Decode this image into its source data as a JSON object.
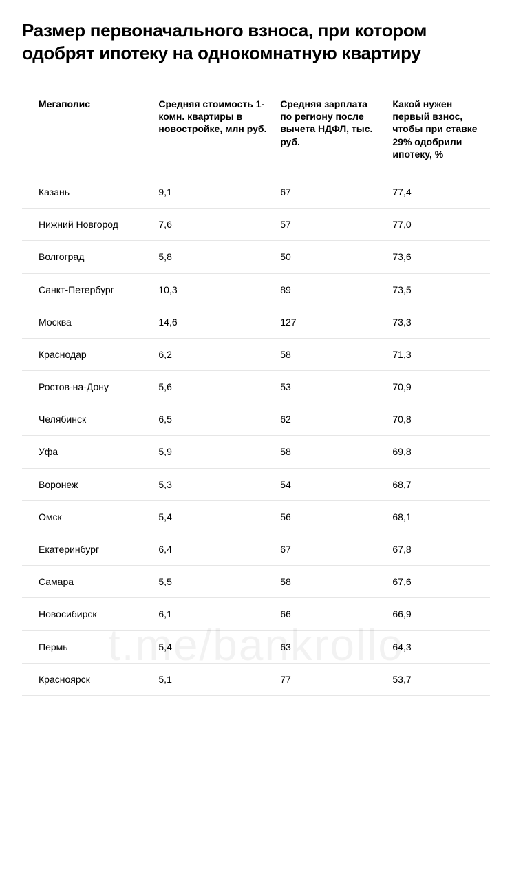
{
  "title": "Размер первоначального взноса, при котором одобрят ипотеку на однокомнатную квартиру",
  "watermark": "t.me/bankrollo",
  "table": {
    "columns": [
      "Мегаполис",
      "Средняя стоимость 1-комн. квартиры в новостройке, млн руб.",
      "Средняя зарплата по региону после вычета НДФЛ, тыс. руб.",
      "Какой нужен первый взнос, чтобы при ставке 29% одобрили ипотеку, %"
    ],
    "rows": [
      [
        "Казань",
        "9,1",
        "67",
        "77,4"
      ],
      [
        "Нижний Новгород",
        "7,6",
        "57",
        "77,0"
      ],
      [
        "Волгоград",
        "5,8",
        "50",
        "73,6"
      ],
      [
        "Санкт-Петербург",
        "10,3",
        "89",
        "73,5"
      ],
      [
        "Москва",
        "14,6",
        "127",
        "73,3"
      ],
      [
        "Краснодар",
        "6,2",
        "58",
        "71,3"
      ],
      [
        "Ростов-на-Дону",
        "5,6",
        "53",
        "70,9"
      ],
      [
        "Челябинск",
        "6,5",
        "62",
        "70,8"
      ],
      [
        "Уфа",
        "5,9",
        "58",
        "69,8"
      ],
      [
        "Воронеж",
        "5,3",
        "54",
        "68,7"
      ],
      [
        "Омск",
        "5,4",
        "56",
        "68,1"
      ],
      [
        "Екатеринбург",
        "6,4",
        "67",
        "67,8"
      ],
      [
        "Самара",
        "5,5",
        "58",
        "67,6"
      ],
      [
        "Новосибирск",
        "6,1",
        "66",
        "66,9"
      ],
      [
        "Пермь",
        "5,4",
        "63",
        "64,3"
      ],
      [
        "Красноярск",
        "5,1",
        "77",
        "53,7"
      ]
    ]
  },
  "styling": {
    "background_color": "#ffffff",
    "text_color": "#000000",
    "border_color": "#e6e6e6",
    "title_fontsize": 26,
    "title_fontweight": 800,
    "header_fontsize": 14,
    "header_fontweight": 700,
    "cell_fontsize": 14,
    "watermark_color": "rgba(0,0,0,0.05)",
    "watermark_fontsize": 64
  }
}
